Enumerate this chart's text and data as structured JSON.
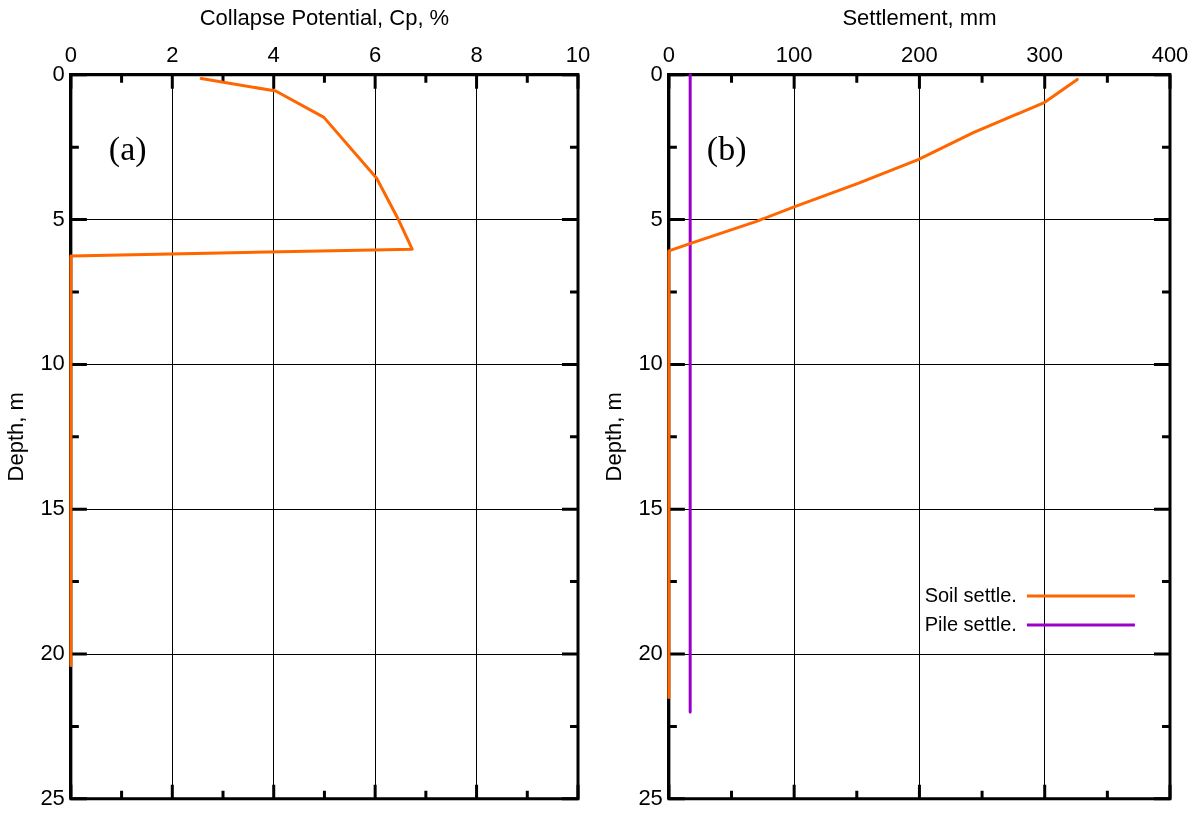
{
  "chart_data": [
    {
      "type": "line",
      "xlabel": "Collapse Potential, Cp, %",
      "ylabel": "Depth, m",
      "annotations": [
        "(a)"
      ],
      "xlim": [
        0,
        10
      ],
      "xticks": [
        0,
        {
          "value": 1,
          "label": null
        },
        2,
        {
          "value": 3,
          "label": null
        },
        4,
        {
          "value": 5,
          "label": null
        },
        6,
        {
          "value": 7,
          "label": null
        },
        8,
        {
          "value": 9,
          "label": null
        },
        10
      ],
      "ylim": [
        25,
        0
      ],
      "yticks": [
        0,
        {
          "value": 2.5,
          "label": null
        },
        5,
        {
          "value": 7.5,
          "label": null
        },
        10,
        {
          "value": 12.5,
          "label": null
        },
        15,
        {
          "value": 17.5,
          "label": null
        },
        20,
        {
          "value": 22.5,
          "label": null
        },
        25
      ],
      "grid": true,
      "legend": false,
      "marker": "none",
      "line_style": "solid",
      "series": [
        {
          "color": "#ff6600",
          "x": [
            2.57,
            4.04,
            4.99,
            6.03,
            6.45,
            6.73,
            0,
            0
          ],
          "values": [
            0.13,
            0.56,
            1.47,
            3.57,
            4.97,
            6.02,
            6.26,
            20.4
          ]
        }
      ]
    },
    {
      "type": "line",
      "xlabel": "Settlement, mm",
      "ylabel": "Depth, m",
      "annotations": [
        "(b)"
      ],
      "xlim": [
        0,
        400
      ],
      "xticks": [
        0,
        {
          "value": 50,
          "label": null
        },
        100,
        {
          "value": 150,
          "label": null
        },
        200,
        {
          "value": 250,
          "label": null
        },
        300,
        {
          "value": 350,
          "label": null
        },
        400
      ],
      "ylim": [
        25,
        0
      ],
      "yticks": [
        0,
        {
          "value": 2.5,
          "label": null
        },
        5,
        {
          "value": 7.5,
          "label": null
        },
        10,
        {
          "value": 12.5,
          "label": null
        },
        15,
        {
          "value": 17.5,
          "label": null
        },
        20,
        {
          "value": 22.5,
          "label": null
        },
        25
      ],
      "grid": true,
      "legend": "right",
      "marker": "none",
      "line_style": "solid",
      "series": [
        {
          "name": "Soil settle.",
          "color": "#ff6600",
          "x": [
            326,
            300,
            243,
            199,
            151,
            100,
            70,
            18,
            0,
            0
          ],
          "values": [
            0.16,
            0.95,
            2.0,
            2.93,
            3.75,
            4.56,
            5.06,
            5.81,
            6.08,
            21.5
          ]
        },
        {
          "name": "Pile settle.",
          "color": "#9900cc",
          "x": [
            17,
            17
          ],
          "values": [
            0,
            22
          ]
        }
      ]
    }
  ]
}
